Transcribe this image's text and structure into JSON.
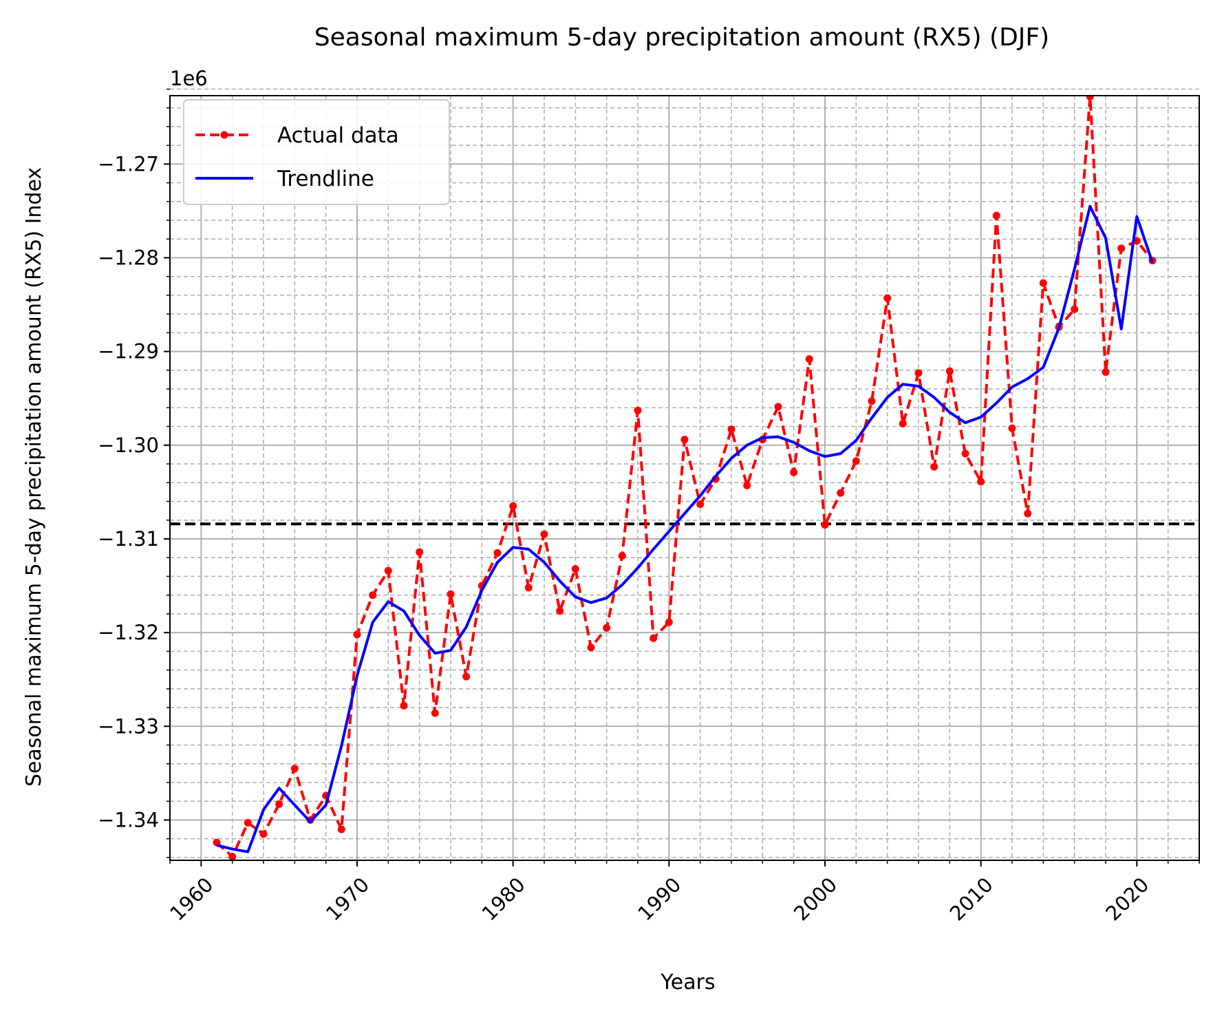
{
  "chart_data": {
    "type": "line",
    "title": "Seasonal maximum 5-day precipitation amount (RX5) (DJF)",
    "xlabel": "Years",
    "ylabel": "Seasonal maximum 5-day precipitation amount (RX5) Index",
    "y_offset_label": "1e6",
    "xlim": [
      1958.0,
      2024.0
    ],
    "ylim": [
      -1344.3,
      -1262.7
    ],
    "x_ticks": [
      1960,
      1970,
      1980,
      1990,
      2000,
      2010,
      2020
    ],
    "x_tick_labels": [
      "1960",
      "1970",
      "1980",
      "1990",
      "2000",
      "2010",
      "2020"
    ],
    "y_ticks": [
      -1340,
      -1330,
      -1320,
      -1310,
      -1300,
      -1290,
      -1280,
      -1270
    ],
    "y_tick_labels": [
      "−1.34",
      "−1.33",
      "−1.32",
      "−1.31",
      "−1.30",
      "−1.29",
      "−1.28",
      "−1.27"
    ],
    "grid": true,
    "minor_grid": true,
    "legend_position": "upper-left",
    "reference_line": -1308.4,
    "x": [
      1961,
      1962,
      1963,
      1964,
      1965,
      1966,
      1967,
      1968,
      1969,
      1970,
      1971,
      1972,
      1973,
      1974,
      1975,
      1976,
      1977,
      1978,
      1979,
      1980,
      1981,
      1982,
      1983,
      1984,
      1985,
      1986,
      1987,
      1988,
      1989,
      1990,
      1991,
      1992,
      1993,
      1994,
      1995,
      1996,
      1997,
      1998,
      1999,
      2000,
      2001,
      2002,
      2003,
      2004,
      2005,
      2006,
      2007,
      2008,
      2009,
      2010,
      2011,
      2012,
      2013,
      2014,
      2015,
      2016,
      2017,
      2018,
      2019,
      2020,
      2021
    ],
    "series": [
      {
        "name": "Actual data",
        "color": "#ff0000",
        "style": "dashed-markers",
        "values": [
          -1342.4,
          -1343.9,
          -1340.3,
          -1341.5,
          -1338.3,
          -1334.5,
          -1340.0,
          -1337.4,
          -1341.0,
          -1320.2,
          -1316.0,
          -1313.4,
          -1327.8,
          -1311.4,
          -1328.6,
          -1315.9,
          -1324.7,
          -1315.0,
          -1311.5,
          -1306.5,
          -1315.2,
          -1309.5,
          -1317.7,
          -1313.2,
          -1321.6,
          -1319.5,
          -1311.8,
          -1296.3,
          -1320.6,
          -1318.9,
          -1299.4,
          -1306.3,
          -1303.6,
          -1298.3,
          -1304.3,
          -1299.4,
          -1295.9,
          -1302.9,
          -1290.8,
          -1308.5,
          -1305.1,
          -1301.7,
          -1295.3,
          -1284.3,
          -1297.7,
          -1292.3,
          -1302.3,
          -1292.1,
          -1300.9,
          -1303.9,
          -1275.5,
          -1298.2,
          -1307.3,
          -1282.7,
          -1287.4,
          -1285.5,
          -1262.8,
          -1292.2,
          -1279.0,
          -1278.2,
          -1280.3
        ]
      },
      {
        "name": "Trendline",
        "color": "#0000ff",
        "style": "solid",
        "values": [
          -1342.7,
          -1343.1,
          -1343.4,
          -1338.9,
          -1336.6,
          -1338.4,
          -1340.2,
          -1338.4,
          -1332.1,
          -1324.6,
          -1318.9,
          -1316.7,
          -1317.7,
          -1320.3,
          -1322.2,
          -1321.9,
          -1319.4,
          -1315.5,
          -1312.5,
          -1310.9,
          -1311.1,
          -1312.5,
          -1314.5,
          -1316.2,
          -1316.8,
          -1316.3,
          -1314.9,
          -1313.1,
          -1311.1,
          -1309.2,
          -1307.3,
          -1305.4,
          -1303.3,
          -1301.4,
          -1300.0,
          -1299.2,
          -1299.1,
          -1299.7,
          -1300.6,
          -1301.2,
          -1300.9,
          -1299.5,
          -1297.1,
          -1294.9,
          -1293.5,
          -1293.7,
          -1294.9,
          -1296.5,
          -1297.6,
          -1297.0,
          -1295.5,
          -1293.8,
          -1292.9,
          -1291.7,
          -1287.5,
          -1281.2,
          -1274.5,
          -1277.9,
          -1287.6,
          -1275.6,
          -1280.5
        ]
      }
    ]
  }
}
